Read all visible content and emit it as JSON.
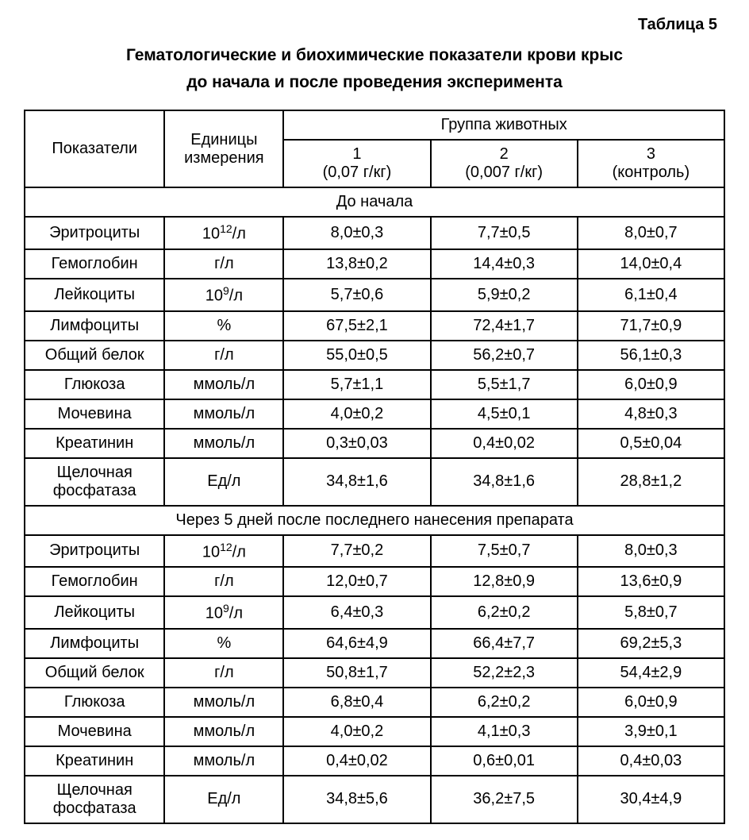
{
  "table_label": "Таблица 5",
  "caption_line1": "Гематологические и биохимические показатели крови крыс",
  "caption_line2": "до начала и после проведения эксперимента",
  "headers": {
    "param": "Показатели",
    "unit": "Единицы измерения",
    "group": "Группа животных",
    "g1_num": "1",
    "g1_sub": "(0,07 г/кг)",
    "g2_num": "2",
    "g2_sub": "(0,007 г/кг)",
    "g3_num": "3",
    "g3_sub": "(контроль)"
  },
  "section1": "До начала",
  "section2": "Через 5 дней после последнего нанесения препарата",
  "units": {
    "e12": "10",
    "e12_sup": "12",
    "e12_suffix": "/л",
    "gl": "г/л",
    "e9": "10",
    "e9_sup": "9",
    "e9_suffix": "/л",
    "pct": "%",
    "mmol": "ммоль/л",
    "ed": "Ед/л"
  },
  "params": {
    "erythro": "Эритроциты",
    "hemo": "Гемоглобин",
    "leuko": "Лейкоциты",
    "lympho": "Лимфоциты",
    "protein": "Общий белок",
    "glucose": "Глюкоза",
    "urea": "Мочевина",
    "creat": "Креатинин",
    "alkphos1": "Щелочная",
    "alkphos2": "фосфатаза"
  },
  "before": {
    "erythro": {
      "g1": "8,0±0,3",
      "g2": "7,7±0,5",
      "g3": "8,0±0,7"
    },
    "hemo": {
      "g1": "13,8±0,2",
      "g2": "14,4±0,3",
      "g3": "14,0±0,4"
    },
    "leuko": {
      "g1": "5,7±0,6",
      "g2": "5,9±0,2",
      "g3": "6,1±0,4"
    },
    "lympho": {
      "g1": "67,5±2,1",
      "g2": "72,4±1,7",
      "g3": "71,7±0,9"
    },
    "protein": {
      "g1": "55,0±0,5",
      "g2": "56,2±0,7",
      "g3": "56,1±0,3"
    },
    "glucose": {
      "g1": "5,7±1,1",
      "g2": "5,5±1,7",
      "g3": "6,0±0,9"
    },
    "urea": {
      "g1": "4,0±0,2",
      "g2": "4,5±0,1",
      "g3": "4,8±0,3"
    },
    "creat": {
      "g1": "0,3±0,03",
      "g2": "0,4±0,02",
      "g3": "0,5±0,04"
    },
    "alkphos": {
      "g1": "34,8±1,6",
      "g2": "34,8±1,6",
      "g3": "28,8±1,2"
    }
  },
  "after": {
    "erythro": {
      "g1": "7,7±0,2",
      "g2": "7,5±0,7",
      "g3": "8,0±0,3"
    },
    "hemo": {
      "g1": "12,0±0,7",
      "g2": "12,8±0,9",
      "g3": "13,6±0,9"
    },
    "leuko": {
      "g1": "6,4±0,3",
      "g2": "6,2±0,2",
      "g3": "5,8±0,7"
    },
    "lympho": {
      "g1": "64,6±4,9",
      "g2": "66,4±7,7",
      "g3": "69,2±5,3"
    },
    "protein": {
      "g1": "50,8±1,7",
      "g2": "52,2±2,3",
      "g3": "54,4±2,9"
    },
    "glucose": {
      "g1": "6,8±0,4",
      "g2": "6,2±0,2",
      "g3": "6,0±0,9"
    },
    "urea": {
      "g1": "4,0±0,2",
      "g2": "4,1±0,3",
      "g3": "3,9±0,1"
    },
    "creat": {
      "g1": "0,4±0,02",
      "g2": "0,6±0,01",
      "g3": "0,4±0,03"
    },
    "alkphos": {
      "g1": "34,8±5,6",
      "g2": "36,2±7,5",
      "g3": "30,4±4,9"
    }
  }
}
